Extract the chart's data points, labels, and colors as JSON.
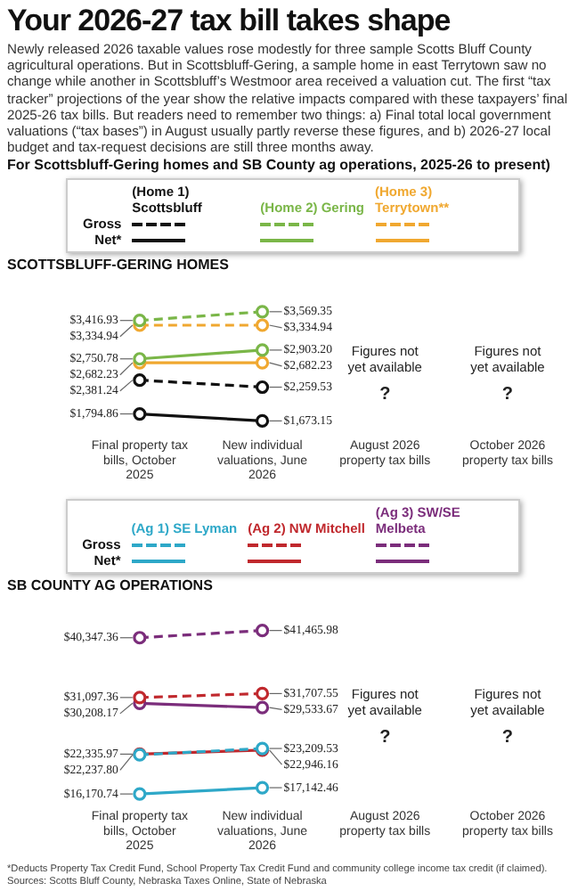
{
  "chart_data": [
    {
      "type": "other",
      "title": "Your 2026-27 tax bill takes shape",
      "subtitle": "Newly released 2026 taxable values rose modestly for three sample Scotts Bluff County agricultural operations. But in Scottsbluff-Gering, a sample home in east Terrytown saw no change while another in Scottsbluff’s Westmoor area received a valuation cut. The first “tax tracker” projections of the year show the relative impacts compared with these taxpayers’ final 2025-26 tax bills. But readers need to remember two things: a) Final total local government valuations (“tax bases”) in August usually partly reverse these figures, and b) 2026-27 local budget and tax-request decisions are still three months away.",
      "annotations": [
        "For Scottsbluff-Gering homes and SB County ag operations, 2025-26 to present)"
      ]
    },
    {
      "type": "line",
      "title": "SCOTTSBLUFF-GERING HOMES",
      "categories": [
        "Final property tax bills, October 2025",
        "New individual valuations, June 2026",
        "August 2026 property tax bills",
        "October 2026 property tax bills"
      ],
      "marker": "circle",
      "grid": false,
      "tick_labels": "x",
      "legend": "top",
      "series": [
        {
          "name": "(Home 1) Scottsbluff",
          "color": "#111111",
          "line_style": "dashed",
          "values": [
            2381.24,
            2259.53,
            null,
            null
          ],
          "value_labels": [
            "$2,381.24",
            "$2,259.53",
            null,
            null
          ]
        },
        {
          "color": "#111111",
          "line_style": "solid",
          "values": [
            1794.86,
            1673.15,
            null,
            null
          ],
          "value_labels": [
            "$1,794.86",
            "$1,673.15",
            null,
            null
          ]
        },
        {
          "name": "(Home 2) Gering",
          "color": "#7ab648",
          "line_style": "dashed",
          "values": [
            3416.93,
            3569.35,
            null,
            null
          ],
          "value_labels": [
            "$3,416.93",
            "$3,569.35",
            null,
            null
          ]
        },
        {
          "color": "#7ab648",
          "line_style": "solid",
          "values": [
            2750.78,
            2903.2,
            null,
            null
          ],
          "value_labels": [
            "$2,750.78",
            "$2,903.20",
            null,
            null
          ]
        },
        {
          "name": "(Home 3) Terrytown**",
          "color": "#f0a830",
          "line_style": "dashed",
          "values": [
            3334.94,
            3334.94,
            null,
            null
          ],
          "value_labels": [
            "$3,334.94",
            "$3,334.94",
            null,
            null
          ]
        },
        {
          "color": "#f0a830",
          "line_style": "solid",
          "values": [
            2682.23,
            2682.23,
            null,
            null
          ],
          "value_labels": [
            "$2,682.23",
            "$2,682.23",
            null,
            null
          ]
        }
      ],
      "annotations": [
        "Gross",
        "Net*",
        "Figures not yet available",
        "?",
        "Figures not yet available",
        "?"
      ]
    },
    {
      "type": "line",
      "title": "SB COUNTY AG OPERATIONS",
      "categories": [
        "Final property tax bills, October 2025",
        "New individual valuations, June 2026",
        "August 2026 property tax bills",
        "October 2026 property tax bills"
      ],
      "marker": "circle",
      "grid": false,
      "tick_labels": "x",
      "legend": "top",
      "series": [
        {
          "name": "(Ag 1) SE Lyman",
          "color": "#2ea8c8",
          "line_style": "dashed",
          "values": [
            22237.8,
            23209.53,
            null,
            null
          ],
          "value_labels": [
            "$22,237.80",
            "$23,209.53",
            null,
            null
          ]
        },
        {
          "color": "#2ea8c8",
          "line_style": "solid",
          "values": [
            16170.74,
            17142.46,
            null,
            null
          ],
          "value_labels": [
            "$16,170.74",
            "$17,142.46",
            null,
            null
          ]
        },
        {
          "name": "(Ag 2) NW Mitchell",
          "color": "#c0282d",
          "line_style": "dashed",
          "values": [
            31097.36,
            31707.55,
            null,
            null
          ],
          "value_labels": [
            "$31,097.36",
            "$31,707.55",
            null,
            null
          ]
        },
        {
          "color": "#c0282d",
          "line_style": "solid",
          "values": [
            22335.97,
            22946.16,
            null,
            null
          ],
          "value_labels": [
            "$22,335.97",
            "$22,946.16",
            null,
            null
          ]
        },
        {
          "name": "(Ag 3) SW/SE Melbeta",
          "color": "#7b2d7b",
          "line_style": "dashed",
          "values": [
            40347.36,
            41465.98,
            null,
            null
          ],
          "value_labels": [
            "$40,347.36",
            "$41,465.98",
            null,
            null
          ]
        },
        {
          "color": "#7b2d7b",
          "line_style": "solid",
          "values": [
            30208.17,
            29533.67,
            null,
            null
          ],
          "value_labels": [
            "$30,208.17",
            "$29,533.67",
            null,
            null
          ]
        }
      ],
      "annotations": [
        "Gross",
        "Net*",
        "Figures not yet available",
        "?",
        "Figures not yet available",
        "?",
        "*Deducts Property Tax Credit Fund, School Property Tax Credit Fund and community college income tax credit (if claimed).",
        "Sources: Scotts Bluff County, Nebraska Taxes Online, State of Nebraska"
      ]
    }
  ]
}
